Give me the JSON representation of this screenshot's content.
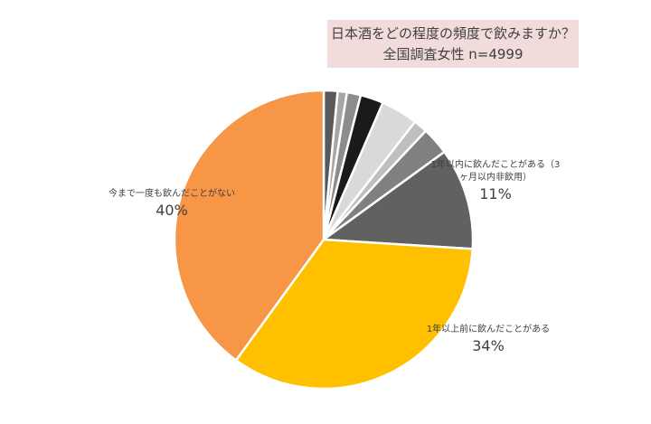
{
  "chart_data": {
    "type": "pie",
    "title": "日本酒をどの程度の頻度で飲みますか？",
    "subtitle": "全国調査女性 n=4999",
    "categories": [
      null,
      null,
      null,
      null,
      null,
      null,
      null,
      "1年以内に飲んだことがある（3ヶ月以内非飲用）",
      "1年以上前に飲んだことがある",
      "今まで一度も飲んだことがない"
    ],
    "values": [
      1.5,
      1,
      1.5,
      2.5,
      4,
      1.5,
      3,
      11,
      34,
      40
    ],
    "value_labels": [
      null,
      null,
      null,
      null,
      null,
      null,
      null,
      "11%",
      "34%",
      "40%"
    ],
    "colors": [
      "#595959",
      "#a6a6a6",
      "#8c8c8c",
      "#1a1a1a",
      "#d9d9d9",
      "#bfbfbf",
      "#808080",
      "#616161",
      "#ffc000",
      "#f79646"
    ]
  }
}
